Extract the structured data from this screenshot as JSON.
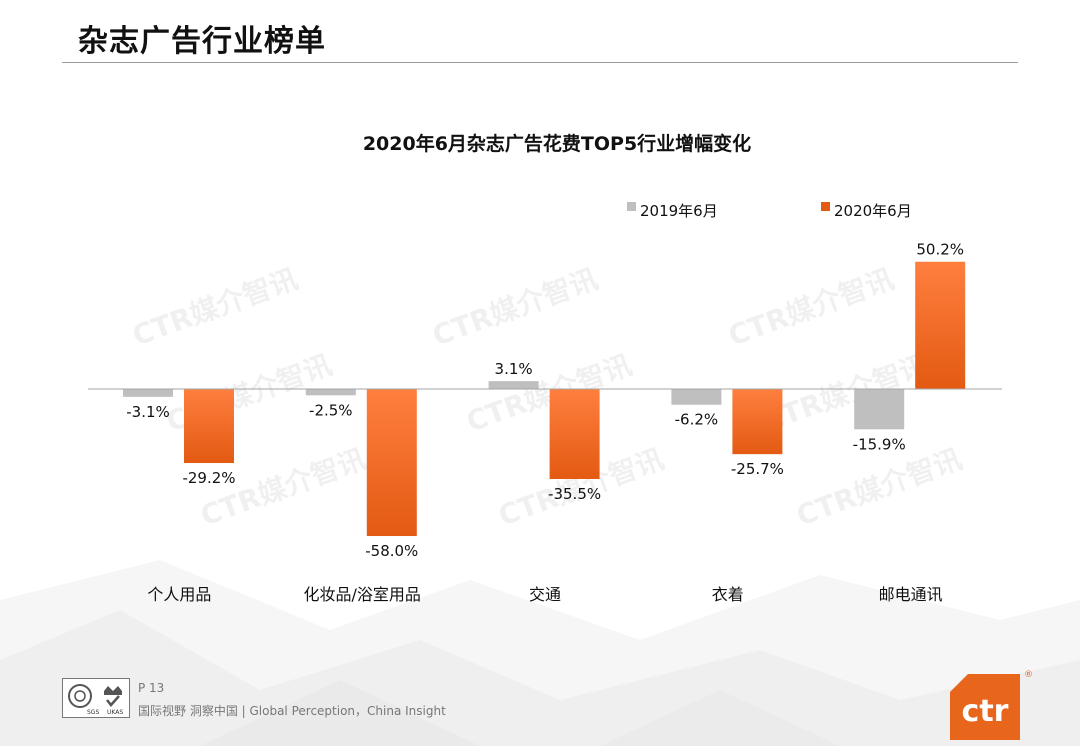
{
  "page": {
    "title": "杂志广告行业榜单",
    "page_number": "P 13",
    "tagline": "国际视野  洞察中国 |  Global Perception，China Insight",
    "watermark": "CTR媒介智讯",
    "logo_text": "ctr",
    "logo_mark": "®",
    "badge_left": "SGS",
    "badge_right": "UKAS"
  },
  "colors": {
    "series_2019": "#bfbfbf",
    "series_2020_top": "#ff7f3f",
    "series_2020_bottom": "#e35a12",
    "brand": "#e8651c",
    "axis": "#a6a6a6"
  },
  "chart_data": {
    "type": "bar",
    "title": "2020年6月杂志广告花费TOP5行业增幅变化",
    "categories": [
      "个人用品",
      "化妆品/浴室用品",
      "交通",
      "衣着",
      "邮电通讯"
    ],
    "series": [
      {
        "name": "2019年6月",
        "values": [
          -3.1,
          -2.5,
          3.1,
          -6.2,
          -15.9
        ],
        "labels": [
          "-3.1%",
          "-2.5%",
          "3.1%",
          "-6.2%",
          "-15.9%"
        ]
      },
      {
        "name": "2020年6月",
        "values": [
          -29.2,
          -58.0,
          -35.5,
          -25.7,
          50.2
        ],
        "labels": [
          "-29.2%",
          "-58.0%",
          "-35.5%",
          "-25.7%",
          "50.2%"
        ]
      }
    ],
    "unit": "%",
    "ylim": [
      -58.0,
      50.2
    ],
    "grid": false,
    "legend": "top-right"
  }
}
